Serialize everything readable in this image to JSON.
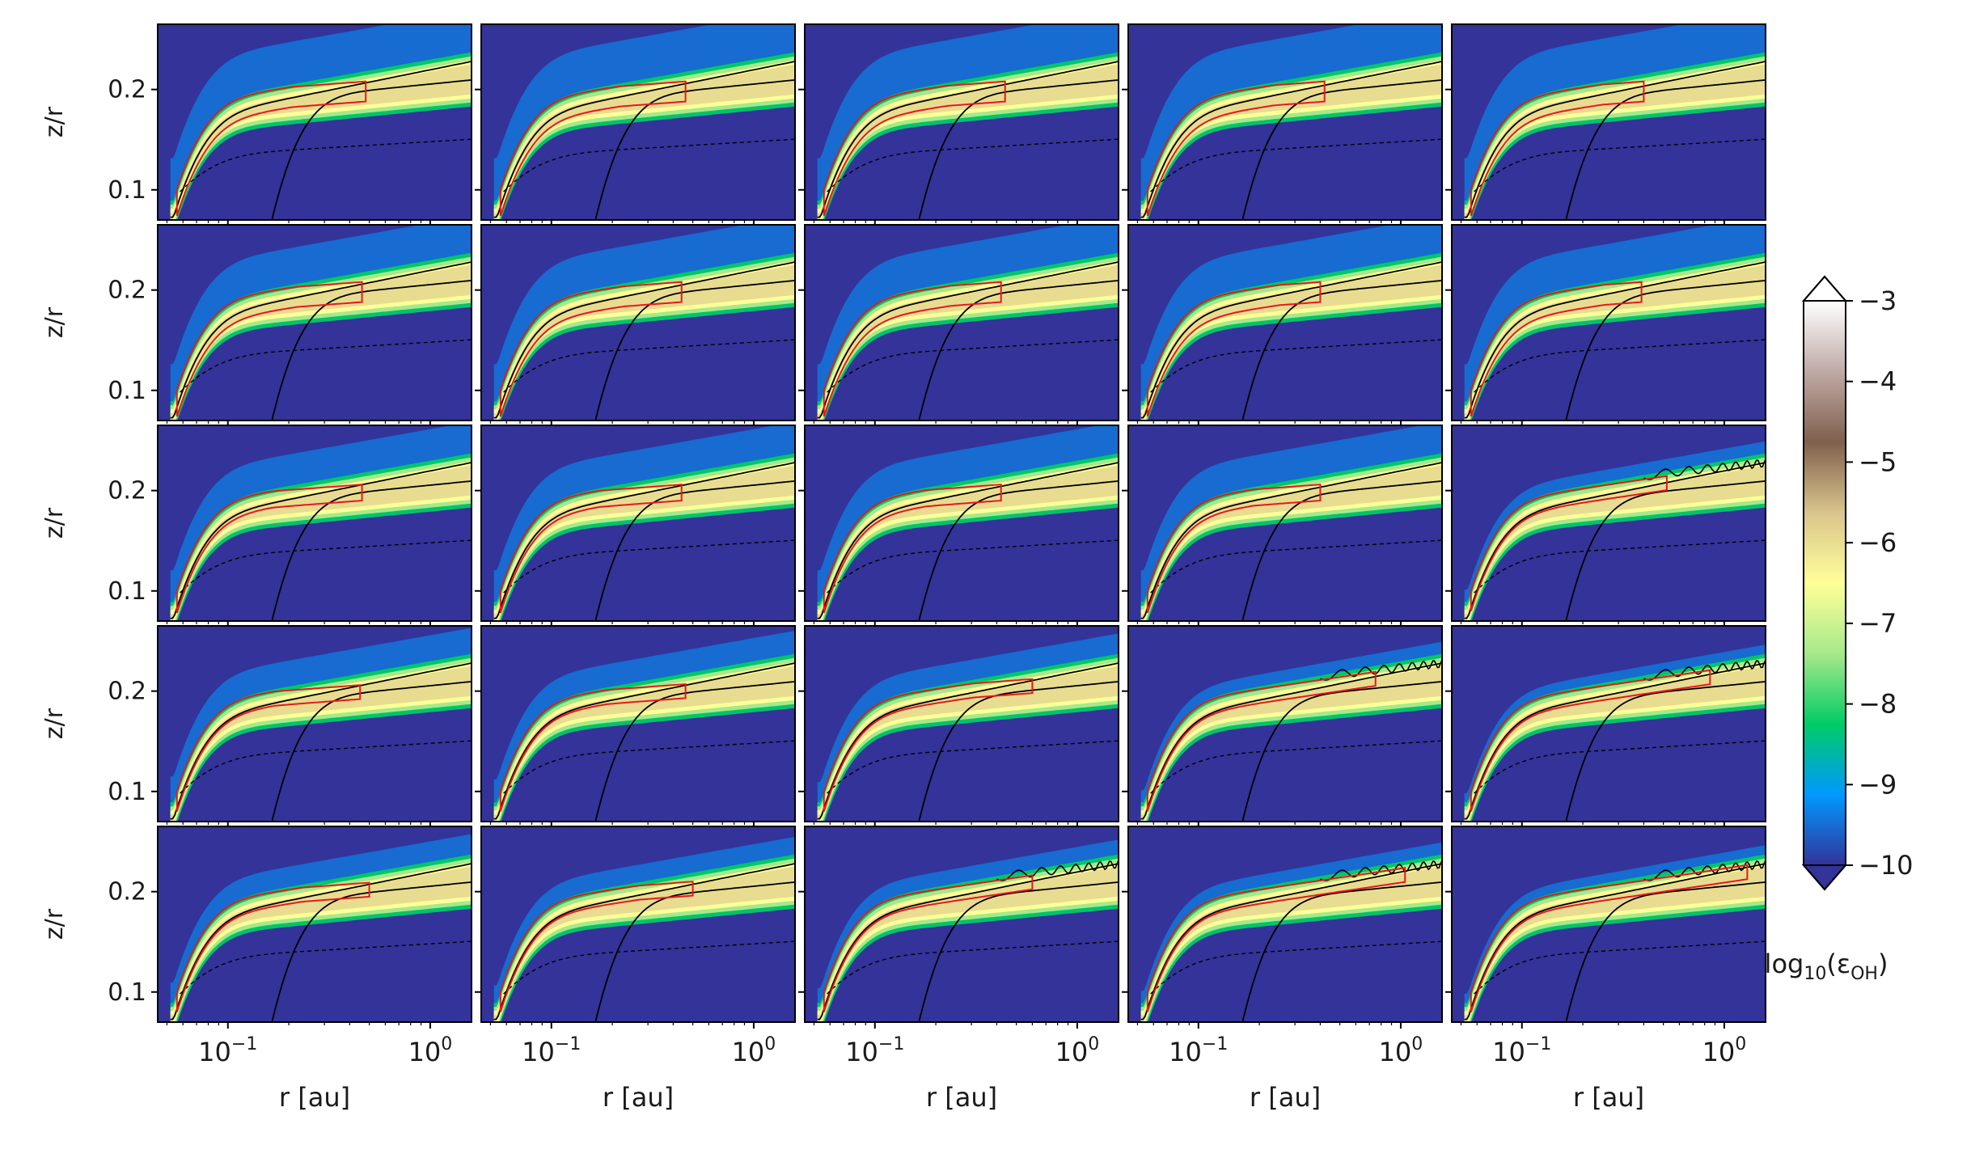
{
  "chart_data": {
    "type": "heatmap",
    "layout": {
      "rows": 5,
      "cols": 5
    },
    "xscale": "log",
    "xlim": [
      0.045,
      1.6
    ],
    "ylim": [
      0.07,
      0.265
    ],
    "xlabel": "r [au]",
    "ylabel": "z/r",
    "x_tick_labels": [
      {
        "value": 0.1,
        "base": "10",
        "exp": "−1"
      },
      {
        "value": 1.0,
        "base": "10",
        "exp": "0"
      }
    ],
    "y_ticks": [
      0.1,
      0.2
    ],
    "y_tick_labels": [
      "0.1",
      "0.2"
    ],
    "colorbar": {
      "label_main": "log",
      "label_sub": "10",
      "label_open": "(ε",
      "label_species": "OH",
      "label_close": ")",
      "min": -10,
      "max": -3,
      "ticks": [
        -3,
        -4,
        -5,
        -6,
        -7,
        -8,
        -9,
        -10
      ],
      "tick_labels": [
        "−3",
        "−4",
        "−5",
        "−6",
        "−7",
        "−8",
        "−9",
        "−10"
      ],
      "extend": "both",
      "colormap": "terrain",
      "colors": [
        "#333399",
        "#0099ff",
        "#00cc66",
        "#a6e98a",
        "#ffff99",
        "#d9c48c",
        "#80604d",
        "#bfaaa5",
        "#ffffff"
      ]
    },
    "series_legend": {
      "red_contour": "#e41a1c",
      "black_solid_contours": "#000000",
      "black_dashed_contour": "#000000"
    },
    "panels": [
      {
        "row": 0,
        "col": 0,
        "box_r_max": 0.48,
        "box_top": 0.2,
        "box_bottom": 0.188,
        "extra_contour": false,
        "spread": 1.0
      },
      {
        "row": 0,
        "col": 1,
        "box_r_max": 0.46,
        "box_top": 0.2,
        "box_bottom": 0.188,
        "extra_contour": false,
        "spread": 1.0
      },
      {
        "row": 0,
        "col": 2,
        "box_r_max": 0.44,
        "box_top": 0.2,
        "box_bottom": 0.188,
        "extra_contour": false,
        "spread": 1.0
      },
      {
        "row": 0,
        "col": 3,
        "box_r_max": 0.42,
        "box_top": 0.2,
        "box_bottom": 0.188,
        "extra_contour": false,
        "spread": 1.0
      },
      {
        "row": 0,
        "col": 4,
        "box_r_max": 0.4,
        "box_top": 0.2,
        "box_bottom": 0.188,
        "extra_contour": false,
        "spread": 1.0
      },
      {
        "row": 1,
        "col": 0,
        "box_r_max": 0.46,
        "box_top": 0.2,
        "box_bottom": 0.188,
        "extra_contour": false,
        "spread": 0.9
      },
      {
        "row": 1,
        "col": 1,
        "box_r_max": 0.44,
        "box_top": 0.2,
        "box_bottom": 0.188,
        "extra_contour": false,
        "spread": 0.9
      },
      {
        "row": 1,
        "col": 2,
        "box_r_max": 0.42,
        "box_top": 0.2,
        "box_bottom": 0.188,
        "extra_contour": false,
        "spread": 0.9
      },
      {
        "row": 1,
        "col": 3,
        "box_r_max": 0.4,
        "box_top": 0.2,
        "box_bottom": 0.188,
        "extra_contour": false,
        "spread": 0.9
      },
      {
        "row": 1,
        "col": 4,
        "box_r_max": 0.39,
        "box_top": 0.2,
        "box_bottom": 0.188,
        "extra_contour": false,
        "spread": 0.9
      },
      {
        "row": 2,
        "col": 0,
        "box_r_max": 0.46,
        "box_top": 0.198,
        "box_bottom": 0.19,
        "extra_contour": false,
        "spread": 0.8
      },
      {
        "row": 2,
        "col": 1,
        "box_r_max": 0.44,
        "box_top": 0.198,
        "box_bottom": 0.19,
        "extra_contour": false,
        "spread": 0.8
      },
      {
        "row": 2,
        "col": 2,
        "box_r_max": 0.42,
        "box_top": 0.198,
        "box_bottom": 0.19,
        "extra_contour": false,
        "spread": 0.8
      },
      {
        "row": 2,
        "col": 3,
        "box_r_max": 0.4,
        "box_top": 0.198,
        "box_bottom": 0.19,
        "extra_contour": false,
        "spread": 0.8
      },
      {
        "row": 2,
        "col": 4,
        "box_r_max": 0.52,
        "box_top": 0.214,
        "box_bottom": 0.208,
        "extra_contour": true,
        "spread": 0.45
      },
      {
        "row": 3,
        "col": 0,
        "box_r_max": 0.45,
        "box_top": 0.198,
        "box_bottom": 0.192,
        "extra_contour": false,
        "spread": 0.7
      },
      {
        "row": 3,
        "col": 1,
        "box_r_max": 0.46,
        "box_top": 0.199,
        "box_bottom": 0.193,
        "extra_contour": false,
        "spread": 0.65
      },
      {
        "row": 3,
        "col": 2,
        "box_r_max": 0.6,
        "box_top": 0.204,
        "box_bottom": 0.198,
        "extra_contour": false,
        "spread": 0.6
      },
      {
        "row": 3,
        "col": 3,
        "box_r_max": 0.75,
        "box_top": 0.224,
        "box_bottom": 0.218,
        "extra_contour": true,
        "spread": 0.45
      },
      {
        "row": 3,
        "col": 4,
        "box_r_max": 0.85,
        "box_top": 0.225,
        "box_bottom": 0.219,
        "extra_contour": true,
        "spread": 0.4
      },
      {
        "row": 4,
        "col": 0,
        "box_r_max": 0.5,
        "box_top": 0.201,
        "box_bottom": 0.195,
        "extra_contour": false,
        "spread": 0.6
      },
      {
        "row": 4,
        "col": 1,
        "box_r_max": 0.5,
        "box_top": 0.202,
        "box_bottom": 0.196,
        "extra_contour": false,
        "spread": 0.55
      },
      {
        "row": 4,
        "col": 2,
        "box_r_max": 0.6,
        "box_top": 0.211,
        "box_bottom": 0.205,
        "extra_contour": true,
        "spread": 0.5
      },
      {
        "row": 4,
        "col": 3,
        "box_r_max": 1.05,
        "box_top": 0.225,
        "box_bottom": 0.219,
        "extra_contour": true,
        "spread": 0.45
      },
      {
        "row": 4,
        "col": 4,
        "box_r_max": 1.3,
        "box_top": 0.236,
        "box_bottom": 0.23,
        "extra_contour": true,
        "spread": 0.4
      }
    ]
  }
}
